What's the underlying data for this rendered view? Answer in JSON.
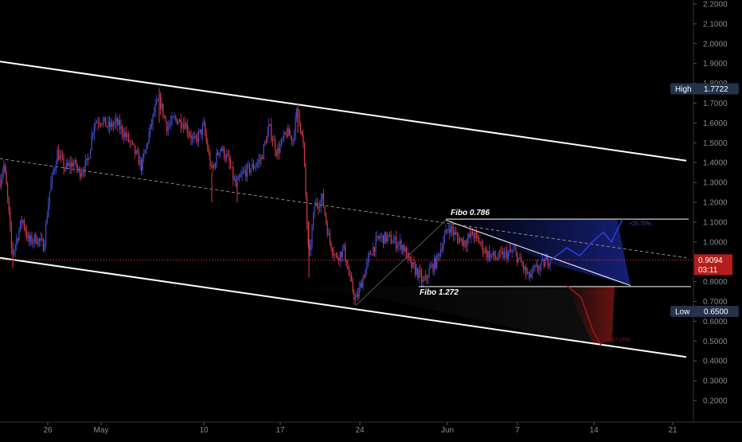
{
  "chart_data": {
    "type": "candlestick",
    "x_axis_labels": [
      "26",
      "May",
      "10",
      "17",
      "24",
      "Jun",
      "7",
      "14",
      "21"
    ],
    "y_ticks": [
      0.2,
      0.3,
      0.4,
      0.5,
      0.6,
      0.7,
      0.8,
      0.9,
      1.0,
      1.1,
      1.2,
      1.3,
      1.4,
      1.5,
      1.6,
      1.7,
      1.8,
      1.9,
      2.0,
      2.1,
      2.2
    ],
    "ylim": [
      0.15,
      2.2
    ],
    "current_price": "0.9094",
    "countdown": "03:11",
    "high": {
      "label": "High",
      "value": "1.7722"
    },
    "low": {
      "label": "Low",
      "value": "0.6500"
    },
    "fibo_upper": {
      "label": "Fibo 0.786",
      "value": 1.115
    },
    "fibo_lower": {
      "label": "Fibo 1.272",
      "value": 0.775
    },
    "target_up": {
      "label": "+25.75%",
      "value": 1.1
    },
    "target_down": {
      "label": "-37.00%",
      "value": 0.5
    },
    "price_path": [
      {
        "x": 0,
        "y": 1.31
      },
      {
        "x": 5,
        "y": 1.39
      },
      {
        "x": 10,
        "y": 1.2
      },
      {
        "x": 15,
        "y": 0.93
      },
      {
        "x": 20,
        "y": 1.0
      },
      {
        "x": 28,
        "y": 1.12
      },
      {
        "x": 36,
        "y": 1.0
      },
      {
        "x": 45,
        "y": 1.02
      },
      {
        "x": 55,
        "y": 0.98
      },
      {
        "x": 62,
        "y": 1.25
      },
      {
        "x": 72,
        "y": 1.45
      },
      {
        "x": 82,
        "y": 1.37
      },
      {
        "x": 92,
        "y": 1.4
      },
      {
        "x": 100,
        "y": 1.35
      },
      {
        "x": 110,
        "y": 1.4
      },
      {
        "x": 118,
        "y": 1.6
      },
      {
        "x": 126,
        "y": 1.62
      },
      {
        "x": 136,
        "y": 1.58
      },
      {
        "x": 146,
        "y": 1.6
      },
      {
        "x": 156,
        "y": 1.55
      },
      {
        "x": 166,
        "y": 1.48
      },
      {
        "x": 178,
        "y": 1.38
      },
      {
        "x": 186,
        "y": 1.52
      },
      {
        "x": 194,
        "y": 1.66
      },
      {
        "x": 200,
        "y": 1.72
      },
      {
        "x": 210,
        "y": 1.58
      },
      {
        "x": 220,
        "y": 1.62
      },
      {
        "x": 232,
        "y": 1.6
      },
      {
        "x": 244,
        "y": 1.5
      },
      {
        "x": 256,
        "y": 1.58
      },
      {
        "x": 266,
        "y": 1.35
      },
      {
        "x": 276,
        "y": 1.48
      },
      {
        "x": 286,
        "y": 1.42
      },
      {
        "x": 296,
        "y": 1.28
      },
      {
        "x": 306,
        "y": 1.35
      },
      {
        "x": 318,
        "y": 1.38
      },
      {
        "x": 328,
        "y": 1.42
      },
      {
        "x": 338,
        "y": 1.58
      },
      {
        "x": 348,
        "y": 1.45
      },
      {
        "x": 360,
        "y": 1.55
      },
      {
        "x": 368,
        "y": 1.52
      },
      {
        "x": 374,
        "y": 1.68
      },
      {
        "x": 381,
        "y": 1.48
      },
      {
        "x": 388,
        "y": 0.9
      },
      {
        "x": 395,
        "y": 1.18
      },
      {
        "x": 405,
        "y": 1.22
      },
      {
        "x": 413,
        "y": 1.02
      },
      {
        "x": 422,
        "y": 0.92
      },
      {
        "x": 432,
        "y": 0.96
      },
      {
        "x": 440,
        "y": 0.8
      },
      {
        "x": 447,
        "y": 0.7
      },
      {
        "x": 456,
        "y": 0.82
      },
      {
        "x": 466,
        "y": 0.95
      },
      {
        "x": 476,
        "y": 1.02
      },
      {
        "x": 486,
        "y": 1.02
      },
      {
        "x": 496,
        "y": 1.0
      },
      {
        "x": 506,
        "y": 0.98
      },
      {
        "x": 516,
        "y": 0.88
      },
      {
        "x": 524,
        "y": 0.85
      },
      {
        "x": 532,
        "y": 0.79
      },
      {
        "x": 540,
        "y": 0.86
      },
      {
        "x": 548,
        "y": 0.9
      },
      {
        "x": 556,
        "y": 1.0
      },
      {
        "x": 564,
        "y": 1.08
      },
      {
        "x": 574,
        "y": 1.02
      },
      {
        "x": 584,
        "y": 1.0
      },
      {
        "x": 594,
        "y": 1.04
      },
      {
        "x": 602,
        "y": 1.0
      },
      {
        "x": 612,
        "y": 0.94
      },
      {
        "x": 624,
        "y": 0.92
      },
      {
        "x": 636,
        "y": 0.94
      },
      {
        "x": 646,
        "y": 0.95
      },
      {
        "x": 656,
        "y": 0.88
      },
      {
        "x": 664,
        "y": 0.82
      },
      {
        "x": 672,
        "y": 0.86
      },
      {
        "x": 680,
        "y": 0.88
      },
      {
        "x": 688,
        "y": 0.91
      },
      {
        "x": 692,
        "y": 0.91
      }
    ],
    "channel_upper": [
      {
        "x": 0,
        "y": 1.91
      },
      {
        "x": 862,
        "y": 1.41
      }
    ],
    "channel_lower": [
      {
        "x": 0,
        "y": 0.92
      },
      {
        "x": 862,
        "y": 0.42
      }
    ],
    "channel_mid": [
      {
        "x": 0,
        "y": 1.42
      },
      {
        "x": 862,
        "y": 0.92
      }
    ],
    "wedge_line": [
      {
        "x": 560,
        "y": 1.11
      },
      {
        "x": 792,
        "y": 0.78
      }
    ],
    "projection_up": [
      {
        "x": 692,
        "y": 0.91
      },
      {
        "x": 712,
        "y": 0.97
      },
      {
        "x": 728,
        "y": 0.93
      },
      {
        "x": 744,
        "y": 1.0
      },
      {
        "x": 758,
        "y": 1.05
      },
      {
        "x": 768,
        "y": 1.0
      },
      {
        "x": 782,
        "y": 1.115
      }
    ],
    "projection_down": [
      {
        "x": 712,
        "y": 0.78
      },
      {
        "x": 730,
        "y": 0.72
      },
      {
        "x": 745,
        "y": 0.55
      },
      {
        "x": 755,
        "y": 0.48
      }
    ]
  }
}
